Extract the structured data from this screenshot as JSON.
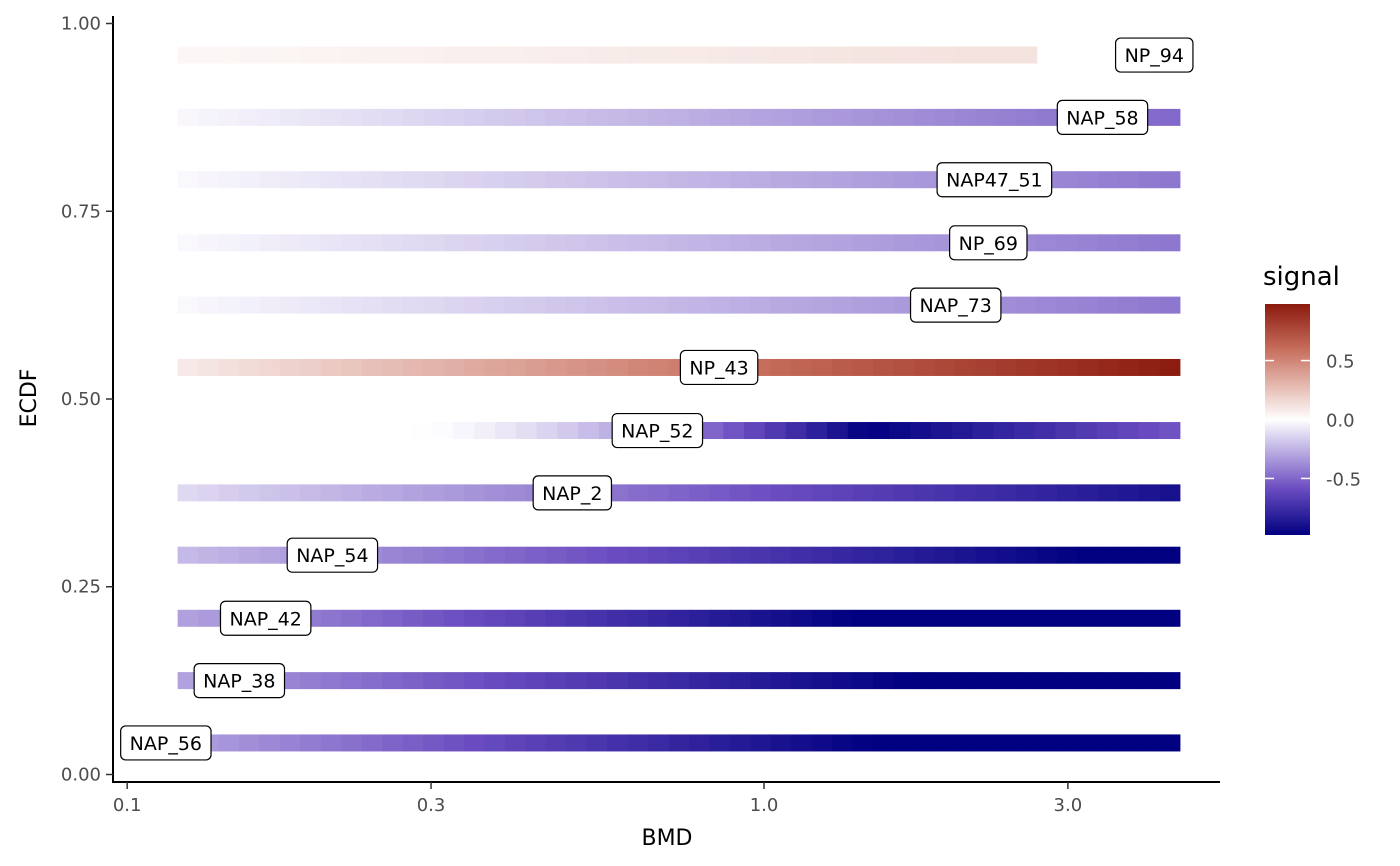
{
  "chart_data": {
    "type": "heatmap",
    "title": "",
    "xlabel": "BMD",
    "ylabel": "ECDF",
    "x_scale": "log10",
    "xlim": [
      0.095,
      5.2
    ],
    "ylim": [
      -0.01,
      1.01
    ],
    "x_ticks": [
      0.1,
      0.3,
      1.0,
      3.0
    ],
    "x_tick_labels": [
      "0.1",
      "0.3",
      "1.0",
      "3.0"
    ],
    "y_ticks": [
      0.0,
      0.25,
      0.5,
      0.75,
      1.0
    ],
    "y_tick_labels": [
      "0.00",
      "0.25",
      "0.50",
      "0.75",
      "1.00"
    ],
    "grid": false,
    "legend": {
      "title": "signal",
      "placement": "right",
      "ticks": [
        0.5,
        0.0,
        -0.5
      ],
      "tick_labels": [
        "0.5",
        "0.0",
        "-0.5"
      ],
      "range": [
        -0.98,
        0.98
      ],
      "colors": {
        "low": "#000080",
        "mid": "#ffffff",
        "high": "#8b1a0e"
      }
    },
    "x_range_common": [
      0.12,
      4.5
    ],
    "series": [
      {
        "name": "NAP_56",
        "y": 0.042,
        "label_x": 0.115,
        "x_start": 0.12,
        "x_end": 4.5,
        "signal_start": -0.3,
        "signal_end": -0.98,
        "signal_peak_x": 1.5
      },
      {
        "name": "NAP_38",
        "y": 0.125,
        "label_x": 0.15,
        "x_start": 0.12,
        "x_end": 4.5,
        "signal_start": -0.3,
        "signal_end": -0.98,
        "signal_peak_x": 1.7
      },
      {
        "name": "NAP_42",
        "y": 0.208,
        "label_x": 0.165,
        "x_start": 0.12,
        "x_end": 4.5,
        "signal_start": -0.3,
        "signal_end": -0.98,
        "signal_peak_x": 1.4
      },
      {
        "name": "NAP_54",
        "y": 0.292,
        "label_x": 0.21,
        "x_start": 0.12,
        "x_end": 4.5,
        "signal_start": -0.22,
        "signal_end": -0.98,
        "signal_peak_x": 3.2
      },
      {
        "name": "NAP_2",
        "y": 0.375,
        "label_x": 0.5,
        "x_start": 0.12,
        "x_end": 4.5,
        "signal_start": -0.12,
        "signal_end": -0.9,
        "signal_peak_x": 4.5
      },
      {
        "name": "NAP_52",
        "y": 0.458,
        "label_x": 0.68,
        "x_start": 0.28,
        "x_end": 4.5,
        "signal_start": 0.0,
        "signal_end": -0.55,
        "signal_peak_x": 1.45,
        "signal_peak": -0.98
      },
      {
        "name": "NP_43",
        "y": 0.542,
        "label_x": 0.85,
        "x_start": 0.12,
        "x_end": 4.5,
        "signal_start": 0.08,
        "signal_end": 0.98,
        "signal_peak_x": 4.5
      },
      {
        "name": "NAP_73",
        "y": 0.625,
        "label_x": 2.0,
        "x_start": 0.12,
        "x_end": 4.5,
        "signal_start": -0.02,
        "signal_end": -0.45,
        "signal_peak_x": 4.5
      },
      {
        "name": "NP_69",
        "y": 0.708,
        "label_x": 2.25,
        "x_start": 0.12,
        "x_end": 4.5,
        "signal_start": -0.02,
        "signal_end": -0.45,
        "signal_peak_x": 4.5
      },
      {
        "name": "NAP47_51",
        "y": 0.792,
        "label_x": 2.3,
        "x_start": 0.12,
        "x_end": 4.5,
        "signal_start": -0.02,
        "signal_end": -0.45,
        "signal_peak_x": 4.5
      },
      {
        "name": "NAP_58",
        "y": 0.875,
        "label_x": 3.4,
        "x_start": 0.12,
        "x_end": 4.5,
        "signal_start": -0.02,
        "signal_end": -0.5,
        "signal_peak_x": 4.5
      },
      {
        "name": "NP_94",
        "y": 0.958,
        "label_x": 4.1,
        "x_start": 0.12,
        "x_end": 4.5,
        "signal_start": 0.03,
        "signal_end": 0.12,
        "signal_peak_x": 2.2,
        "gap": [
          2.75,
          3.5
        ],
        "signal_after_gap": -0.05
      }
    ]
  }
}
